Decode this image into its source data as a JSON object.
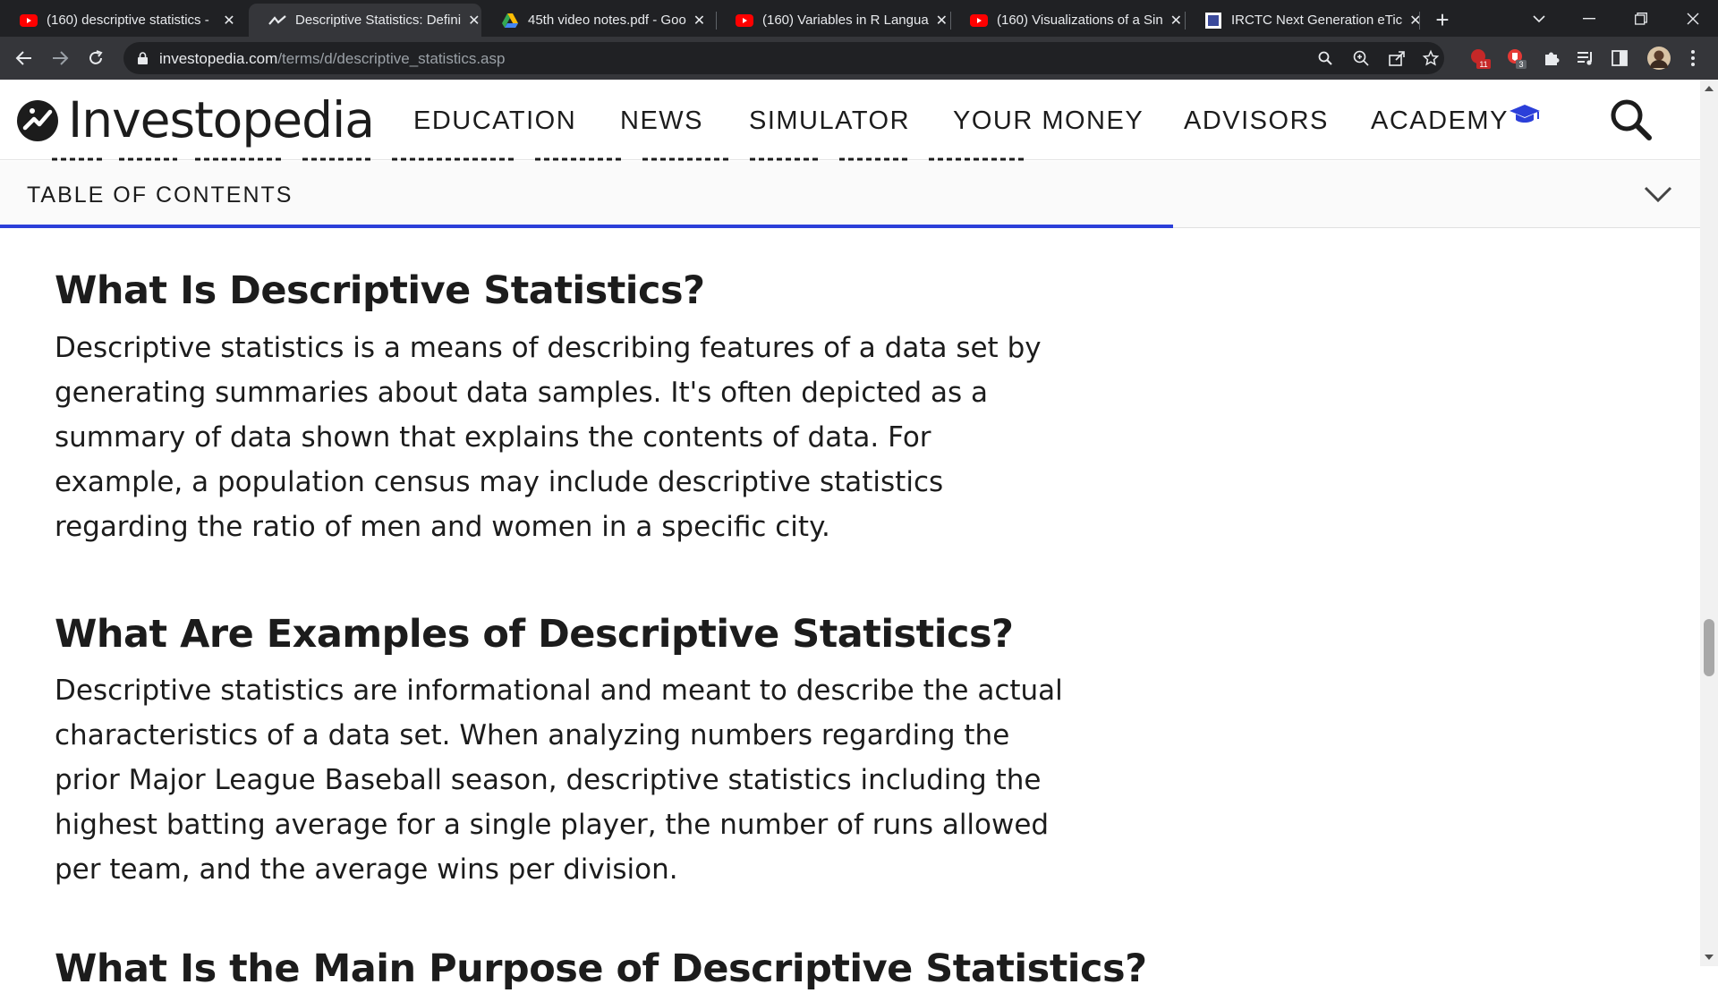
{
  "browser": {
    "tabs": [
      {
        "title": "(160) descriptive statistics -",
        "favicon": "youtube-icon",
        "active": false
      },
      {
        "title": "Descriptive Statistics: Defini",
        "favicon": "investopedia-icon",
        "active": true
      },
      {
        "title": "45th video notes.pdf - Goo",
        "favicon": "google-drive-icon",
        "active": false
      },
      {
        "title": "(160) Variables in R Langua",
        "favicon": "youtube-icon",
        "active": false
      },
      {
        "title": "(160) Visualizations of a Sin",
        "favicon": "youtube-icon",
        "active": false
      },
      {
        "title": "IRCTC Next Generation eTic",
        "favicon": "irctc-icon",
        "active": false
      }
    ],
    "new_tab_label": "+",
    "url_domain": "investopedia.com",
    "url_path": "/terms/d/descriptive_statistics.asp",
    "extension_badges": {
      "first": "11",
      "second": "3"
    },
    "colors": {
      "tabbar": "#202124",
      "toolbar": "#35363a",
      "youtube_red": "#ff0000"
    }
  },
  "site": {
    "logo_text": "Investopedia",
    "nav": [
      "EDUCATION",
      "NEWS",
      "SIMULATOR",
      "YOUR MONEY",
      "ADVISORS",
      "ACADEMY"
    ],
    "accent_color": "#2b3fd9"
  },
  "toc": {
    "label": "TABLE OF CONTENTS",
    "progress_percent": 69
  },
  "article": {
    "sections": [
      {
        "heading": "What Is Descriptive Statistics?",
        "body": "Descriptive statistics is a means of describing features of a data set by generating summaries about data samples. It's often depicted as a summary of data shown that explains the contents of data. For example, a population census may include descriptive statistics regarding the ratio of men and women in a specific city."
      },
      {
        "heading": "What Are Examples of Descriptive Statistics?",
        "body": "Descriptive statistics are informational and meant to describe the actual characteristics of a data set. When analyzing numbers regarding the prior Major League Baseball season, descriptive statistics including the highest batting average for a single player, the number of runs allowed per team, and the average wins per division."
      }
    ],
    "next_heading": "What Is the Main Purpose of Descriptive Statistics?"
  }
}
